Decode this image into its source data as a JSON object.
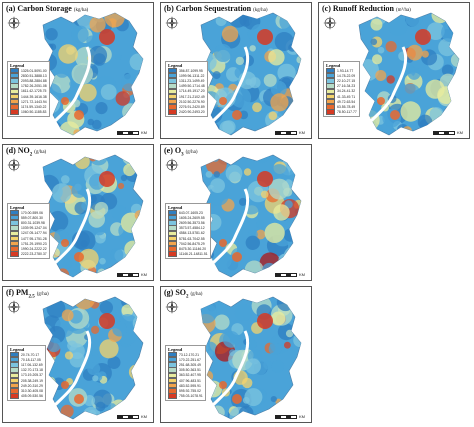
{
  "legend_title": "Legend",
  "scale_label": "KM",
  "ramp_colors": [
    "#2f7fc1",
    "#4aa3d8",
    "#7cc4df",
    "#b6dcc8",
    "#e8ec9e",
    "#f4d36c",
    "#f2a44c",
    "#e8692e",
    "#d63a23",
    "#b01515"
  ],
  "panels": [
    {
      "letter": "(a)",
      "name": "Carbon Storage",
      "unit": "(kg/ha)",
      "legend": [
        "1325.01-5091.00",
        "2830.51-3888.13",
        "2093.88-2884.88",
        "1782.26-2051.08",
        "1611.42-1725.75",
        "1444.39-1616.38",
        "1271.72-1443.94",
        "1174.59-1340.22",
        "1060.50-1185.83"
      ]
    },
    {
      "letter": "(b)",
      "name": "Carbon Sequestration",
      "unit": "(kg/ha)",
      "legend": [
        "356.87-1099.95",
        "1099.96-1311.22",
        "1311.23-1499.49",
        "1499.50-1714.48",
        "1714.49-1917.20",
        "1917.21-2102.49",
        "2102.50-2276.90",
        "2276.91-2420.89",
        "2420.90-2493.20"
      ]
    },
    {
      "letter": "(c)",
      "name": "Runoff Reduction",
      "unit": "(m³/ha)",
      "legend": [
        "1.93-14.77",
        "14.78-22.09",
        "22.10-27.15",
        "27.16-34.23",
        "34.24-41.32",
        "41.33-49.71",
        "49.72-63.54",
        "63.55-78.49",
        "78.50-117.77"
      ]
    },
    {
      "letter": "(d)",
      "name": "NO",
      "sub": "2",
      "unit": "(g/ha)",
      "legend": [
        "170.00-559.06",
        "559.07-800.30",
        "800.31-1039.98",
        "1039.99-1247.04",
        "1247.05-1477.94",
        "1477.95-1751.28",
        "1751.29-1990.23",
        "1990.24-2222.22",
        "2222.23-2780.37"
      ]
    },
    {
      "letter": "(e)",
      "name": "O",
      "sub": "3",
      "unit": "(g/ha)",
      "legend": [
        "643.07-1605.23",
        "1605.24-2609.55",
        "2609.56-3573.56",
        "3573.57-4584.12",
        "4584.13-5781.62",
        "5781.63-7042.55",
        "7042.56-8475.29",
        "8475.30-11146.20",
        "11146.21-14811.51"
      ]
    },
    {
      "letter": "(f)",
      "name": "PM",
      "sub": "2.5",
      "unit": "(g/ha)",
      "legend": [
        "20.74-70.17",
        "70.18-117.05",
        "117.06-132.69",
        "132.70-173.18",
        "173.19-205.37",
        "205.38-249.19",
        "249.20-310.29",
        "310.30-405.08",
        "405.09-530.56"
      ]
    },
    {
      "letter": "(g)",
      "name": "SO",
      "sub": "2",
      "unit": "(g/ha)",
      "legend": [
        "73.12-170.21",
        "170.22-251.67",
        "251.68-305.49",
        "305.50-363.51",
        "363.52-407.95",
        "407.96-483.51",
        "483.52-595.91",
        "595.92-755.02",
        "755.03-1078.91"
      ]
    }
  ]
}
